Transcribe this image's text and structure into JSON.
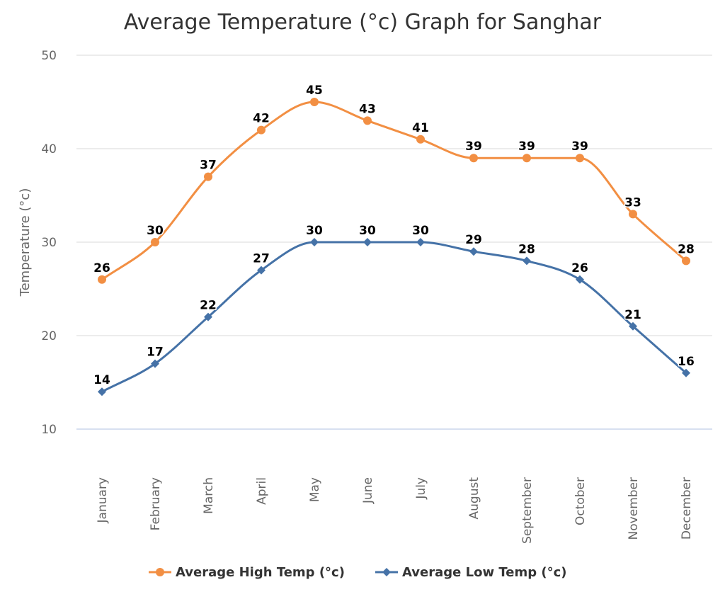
{
  "chart_data": {
    "type": "line",
    "title": "Average Temperature (°c) Graph for Sanghar",
    "xlabel": "",
    "ylabel": "Temperature (°c)",
    "categories": [
      "January",
      "February",
      "March",
      "April",
      "May",
      "June",
      "July",
      "August",
      "September",
      "October",
      "November",
      "December"
    ],
    "ylim": [
      10,
      50
    ],
    "yticks": [
      10,
      20,
      30,
      40,
      50
    ],
    "grid": true,
    "legend_position": "bottom",
    "series": [
      {
        "name": "Average High Temp (°c)",
        "values": [
          26,
          30,
          37,
          42,
          45,
          43,
          41,
          39,
          39,
          39,
          33,
          28
        ],
        "color": "#f28f43",
        "marker": "circle"
      },
      {
        "name": "Average Low Temp (°c)",
        "values": [
          14,
          17,
          22,
          27,
          30,
          30,
          30,
          29,
          28,
          26,
          21,
          16
        ],
        "color": "#4572a7",
        "marker": "diamond"
      }
    ]
  }
}
